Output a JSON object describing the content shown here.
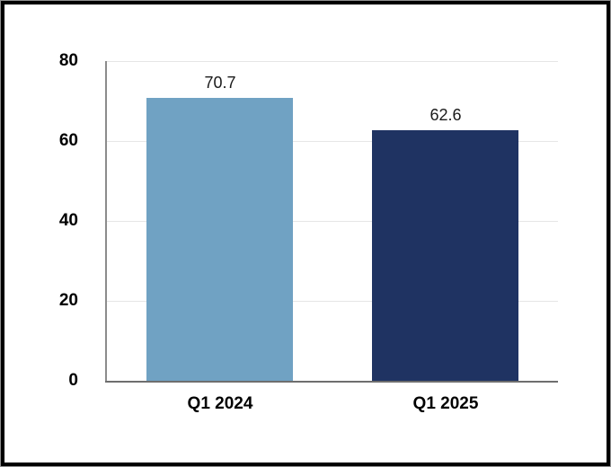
{
  "chart_data": {
    "type": "bar",
    "title": "",
    "xlabel": "",
    "ylabel": "",
    "categories": [
      "Q1 2024",
      "Q1 2025"
    ],
    "values": [
      70.7,
      62.6
    ],
    "value_labels": [
      "70.7",
      "62.6"
    ],
    "bar_colors": [
      "#70A2C3",
      "#1F3362"
    ],
    "ylim": [
      0,
      80
    ],
    "yticks": [
      0,
      20,
      40,
      60,
      80
    ],
    "grid": "horizontal",
    "legend": "none"
  },
  "style": {
    "frame_border_color": "#000000",
    "frame_outer_edge_color": "#8f8f8f",
    "background_color": "#FFFFFF",
    "gridline_color": "#E6E6E6",
    "y_axis_color": "#8C8C8C",
    "x_axis_color": "#6E6E6E",
    "tick_label_color": "#000000",
    "value_label_color": "#1A1A1A"
  }
}
